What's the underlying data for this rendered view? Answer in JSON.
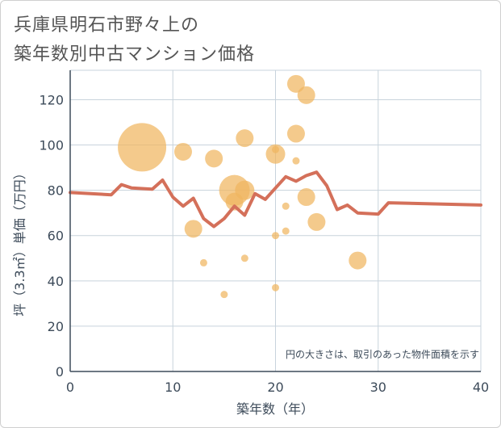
{
  "title_line1": "兵庫県明石市野々上の",
  "title_line2": "築年数別中古マンション価格",
  "chart_data": {
    "type": "scatter",
    "xlabel": "築年数（年）",
    "ylabel": "坪（3.3㎡）単価（万円）",
    "xlim": [
      0,
      40
    ],
    "ylim": [
      0,
      133
    ],
    "x_ticks": [
      0,
      10,
      20,
      30,
      40
    ],
    "y_ticks": [
      0,
      20,
      40,
      60,
      80,
      100,
      120
    ],
    "grid": true,
    "note": "円の大きさは、取引のあった物件面積を示す",
    "colors": {
      "bubble": "#f0b660",
      "line": "#d4705a",
      "grid": "#c8d3dc",
      "axis": "#3d4b5a"
    },
    "bubbles": [
      {
        "x": 7,
        "y": 99,
        "size": 1.0
      },
      {
        "x": 11,
        "y": 97,
        "size": 0.42
      },
      {
        "x": 12,
        "y": 63,
        "size": 0.42
      },
      {
        "x": 13,
        "y": 48,
        "size": 0.2
      },
      {
        "x": 14,
        "y": 94,
        "size": 0.42
      },
      {
        "x": 15,
        "y": 34,
        "size": 0.2
      },
      {
        "x": 16,
        "y": 80,
        "size": 0.72
      },
      {
        "x": 16,
        "y": 75,
        "size": 0.42
      },
      {
        "x": 17,
        "y": 103,
        "size": 0.42
      },
      {
        "x": 17,
        "y": 80,
        "size": 0.45
      },
      {
        "x": 17,
        "y": 50,
        "size": 0.2
      },
      {
        "x": 20,
        "y": 96,
        "size": 0.45
      },
      {
        "x": 20,
        "y": 98,
        "size": 0.2
      },
      {
        "x": 20,
        "y": 60,
        "size": 0.2
      },
      {
        "x": 20,
        "y": 37,
        "size": 0.2
      },
      {
        "x": 21,
        "y": 73,
        "size": 0.2
      },
      {
        "x": 21,
        "y": 62,
        "size": 0.2
      },
      {
        "x": 22,
        "y": 127,
        "size": 0.42
      },
      {
        "x": 22,
        "y": 105,
        "size": 0.42
      },
      {
        "x": 22,
        "y": 93,
        "size": 0.2
      },
      {
        "x": 23,
        "y": 122,
        "size": 0.42
      },
      {
        "x": 23,
        "y": 77,
        "size": 0.42
      },
      {
        "x": 24,
        "y": 66,
        "size": 0.42
      },
      {
        "x": 28,
        "y": 49,
        "size": 0.42
      }
    ],
    "trend": {
      "x": [
        0,
        4,
        5,
        6,
        8,
        9,
        10,
        11,
        12,
        13,
        14,
        15,
        16,
        17,
        18,
        19,
        20,
        21,
        22,
        23,
        24,
        25,
        26,
        27,
        28,
        30,
        31,
        40
      ],
      "y": [
        79,
        78,
        82.5,
        81,
        80.5,
        84.5,
        77,
        73,
        76.5,
        67.5,
        64,
        67.5,
        73,
        69,
        78.5,
        76,
        81,
        86,
        84,
        86.5,
        88,
        82,
        71.5,
        73.5,
        70,
        69.5,
        74.5,
        73.5
      ]
    }
  }
}
